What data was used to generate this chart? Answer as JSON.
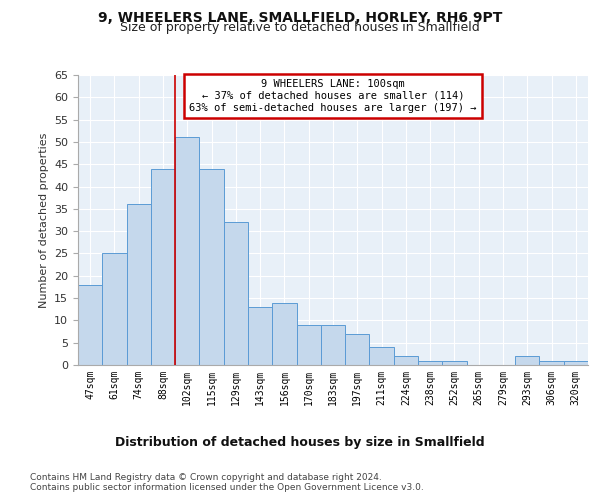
{
  "title": "9, WHEELERS LANE, SMALLFIELD, HORLEY, RH6 9PT",
  "subtitle": "Size of property relative to detached houses in Smallfield",
  "xlabel": "Distribution of detached houses by size in Smallfield",
  "ylabel": "Number of detached properties",
  "categories": [
    "47sqm",
    "61sqm",
    "74sqm",
    "88sqm",
    "102sqm",
    "115sqm",
    "129sqm",
    "143sqm",
    "156sqm",
    "170sqm",
    "183sqm",
    "197sqm",
    "211sqm",
    "224sqm",
    "238sqm",
    "252sqm",
    "265sqm",
    "279sqm",
    "293sqm",
    "306sqm",
    "320sqm"
  ],
  "values": [
    18,
    25,
    36,
    44,
    51,
    44,
    32,
    13,
    14,
    9,
    9,
    7,
    4,
    2,
    1,
    1,
    0,
    0,
    2,
    1,
    1
  ],
  "bar_color": "#c5d8ec",
  "bar_edge_color": "#5b9bd5",
  "background_color": "#e8f0f8",
  "grid_color": "#ffffff",
  "vline_color": "#cc0000",
  "annotation_text": "9 WHEELERS LANE: 100sqm\n← 37% of detached houses are smaller (114)\n63% of semi-detached houses are larger (197) →",
  "annotation_box_color": "#ffffff",
  "annotation_box_edge": "#cc0000",
  "footer_line1": "Contains HM Land Registry data © Crown copyright and database right 2024.",
  "footer_line2": "Contains public sector information licensed under the Open Government Licence v3.0.",
  "ylim": [
    0,
    65
  ],
  "yticks": [
    0,
    5,
    10,
    15,
    20,
    25,
    30,
    35,
    40,
    45,
    50,
    55,
    60,
    65
  ],
  "vline_position": 3.5
}
